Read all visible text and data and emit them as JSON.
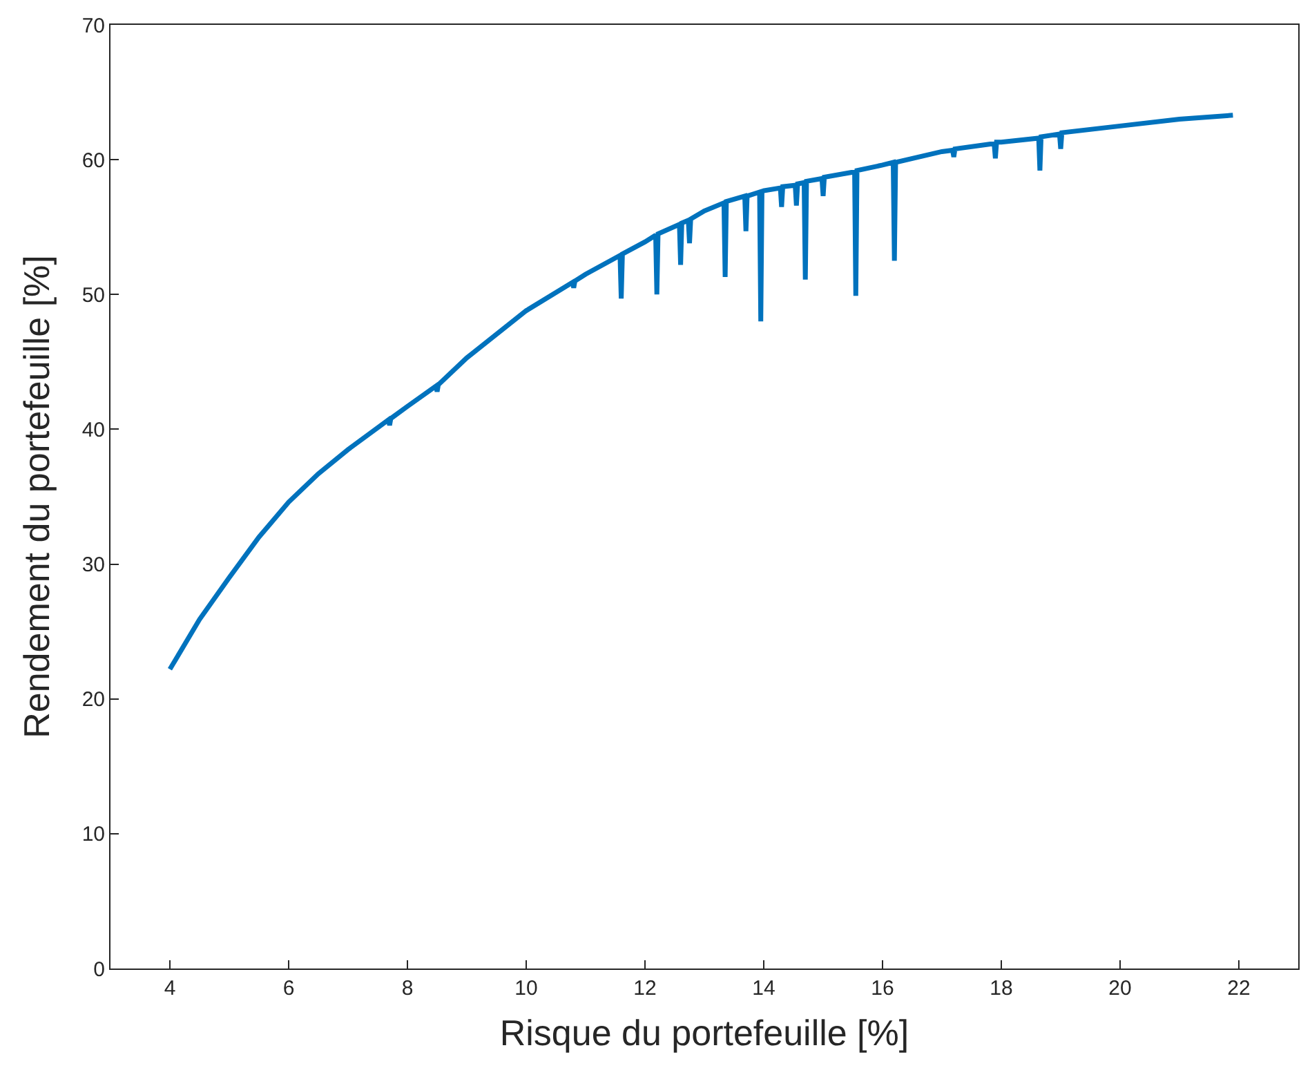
{
  "chart_data": {
    "type": "line",
    "xlabel": "Risque du portefeuille [%]",
    "ylabel": "Rendement du portefeuille [%]",
    "x": [
      4,
      4.5,
      5,
      5.5,
      6,
      6.5,
      7,
      7.68,
      7.7,
      7.72,
      8,
      8.48,
      8.5,
      8.52,
      9,
      10,
      10.78,
      10.8,
      10.82,
      11,
      11.58,
      11.6,
      11.62,
      12,
      12.18,
      12.2,
      12.22,
      12.58,
      12.6,
      12.62,
      12.73,
      12.75,
      12.77,
      13,
      13.33,
      13.35,
      13.37,
      13.68,
      13.7,
      13.72,
      13.93,
      13.95,
      13.97,
      14,
      14.28,
      14.3,
      14.32,
      14.53,
      14.55,
      14.57,
      14.68,
      14.7,
      14.72,
      14.98,
      15,
      15.02,
      15.53,
      15.55,
      15.57,
      16,
      16.18,
      16.2,
      16.22,
      17,
      17.18,
      17.2,
      17.22,
      17.88,
      17.9,
      17.92,
      18,
      18.63,
      18.65,
      18.67,
      18.98,
      19,
      19.02,
      20,
      21,
      21.9
    ],
    "series": [
      {
        "color": "#0072bd",
        "values": [
          22.2,
          25.9,
          29.0,
          32.0,
          34.6,
          36.7,
          38.5,
          40.7,
          40.3,
          40.8,
          41.7,
          43.2,
          42.8,
          43.3,
          45.3,
          48.8,
          50.9,
          50.5,
          51.0,
          51.5,
          52.9,
          49.7,
          53.0,
          53.9,
          54.4,
          50.0,
          54.5,
          55.2,
          52.2,
          55.3,
          55.5,
          53.8,
          55.6,
          56.2,
          56.8,
          51.3,
          56.9,
          57.3,
          54.7,
          57.3,
          57.6,
          48.0,
          57.6,
          57.7,
          57.9,
          56.5,
          58.0,
          58.1,
          56.6,
          58.2,
          58.3,
          51.1,
          58.4,
          58.6,
          57.3,
          58.7,
          59.1,
          49.9,
          59.2,
          59.6,
          59.8,
          52.5,
          59.8,
          60.6,
          60.7,
          60.2,
          60.8,
          61.2,
          60.1,
          61.3,
          61.3,
          61.6,
          59.2,
          61.7,
          61.9,
          60.8,
          62.0,
          62.5,
          63.0,
          63.3
        ]
      }
    ],
    "xlim": [
      3,
      23
    ],
    "xticks": [
      4,
      6,
      8,
      10,
      12,
      14,
      16,
      18,
      20,
      22
    ],
    "ylim": [
      0,
      70
    ],
    "yticks": [
      0,
      10,
      20,
      30,
      40,
      50,
      60,
      70
    ],
    "marker": "none",
    "line_style": "solid"
  }
}
